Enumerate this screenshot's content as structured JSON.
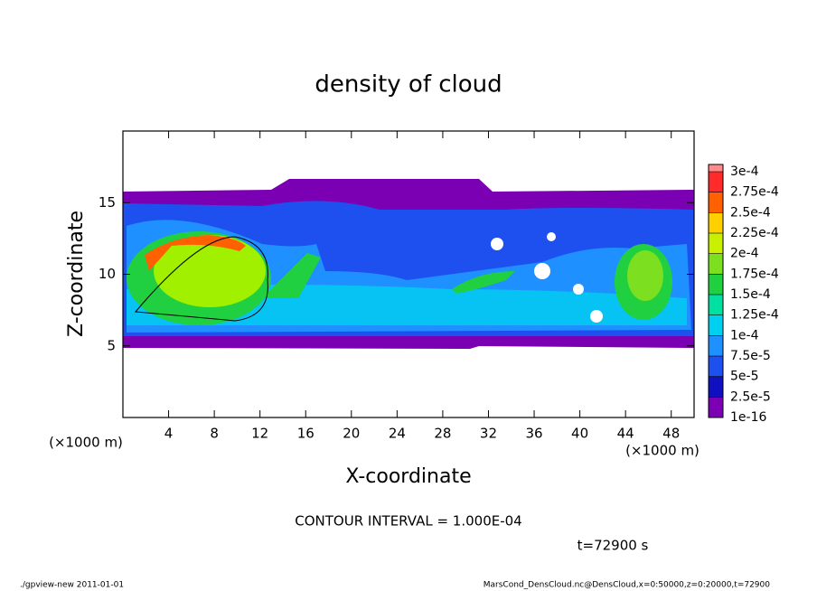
{
  "chart_data": {
    "type": "contour",
    "title": "density of cloud",
    "x_label": "X-coordinate",
    "y_label": "Z-coordinate",
    "x_unit": "(×1000 m)",
    "y_unit": "(×1000 m)",
    "xlim": [
      0,
      50
    ],
    "ylim": [
      0,
      20
    ],
    "xticks": [
      4,
      8,
      12,
      16,
      20,
      24,
      28,
      32,
      36,
      40,
      44,
      48
    ],
    "yticks": [
      5,
      10,
      15
    ],
    "colorbar": {
      "levels": [
        {
          "value": 1e-16,
          "label": "1e-16"
        },
        {
          "value": 2.5e-05,
          "label": "2.5e-5"
        },
        {
          "value": 5e-05,
          "label": "5e-5"
        },
        {
          "value": 7.5e-05,
          "label": "7.5e-5"
        },
        {
          "value": 0.0001,
          "label": "1e-4"
        },
        {
          "value": 0.000125,
          "label": "1.25e-4"
        },
        {
          "value": 0.00015,
          "label": "1.5e-4"
        },
        {
          "value": 0.000175,
          "label": "1.75e-4"
        },
        {
          "value": 0.0002,
          "label": "2e-4"
        },
        {
          "value": 0.000225,
          "label": "2.25e-4"
        },
        {
          "value": 0.00025,
          "label": "2.5e-4"
        },
        {
          "value": 0.000275,
          "label": "2.75e-4"
        },
        {
          "value": 0.0003,
          "label": "3e-4"
        }
      ],
      "colors": [
        "#7b00b4",
        "#1010c0",
        "#1e50f0",
        "#1e90ff",
        "#00d0f0",
        "#00e0a0",
        "#20d040",
        "#7ce020",
        "#c8f000",
        "#ffd000",
        "#ff6000",
        "#ff2a2a",
        "#ff8c8c"
      ]
    },
    "contour_interval": "CONTOUR INTERVAL = 1.000E-04",
    "time": "t=72900 s"
  },
  "footer": {
    "left": "./gpview-new   2011-01-01",
    "right": "MarsCond_DensCloud.nc@DensCloud,x=0:50000,z=0:20000,t=72900"
  }
}
